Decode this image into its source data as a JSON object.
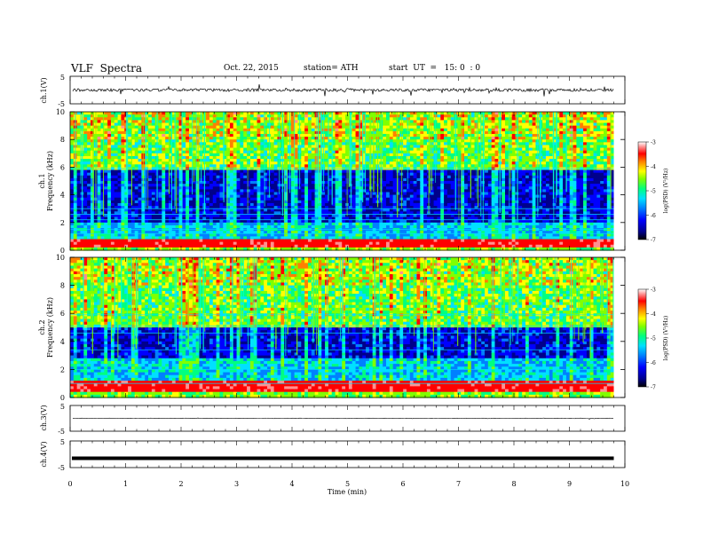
{
  "header": {
    "title": "VLF  Spectra",
    "date": "Oct. 22, 2015",
    "station": "station= ATH",
    "start": "start  UT  =   15: 0  : 0"
  },
  "chart_data": {
    "type": "heatmap",
    "xlabel": "Time  (min)",
    "xlim": [
      0,
      10
    ],
    "x_ticks": [
      "0",
      "1",
      "2",
      "3",
      "4",
      "5",
      "6",
      "7",
      "8",
      "9",
      "10"
    ],
    "data_end_min": 9.8,
    "panels": [
      {
        "name": "ch.1(V)",
        "kind": "waveform",
        "ylim": [
          -5,
          5
        ],
        "y_ticks": [
          "5",
          "-5"
        ],
        "level": 0.0,
        "description_level": "noisy trace near 0 V"
      },
      {
        "name": "ch.1",
        "kind": "spectrogram",
        "ylabel": "Frequency  (kHz)",
        "ylim": [
          0,
          10
        ],
        "y_ticks": [
          "0",
          "2",
          "4",
          "6",
          "8",
          "10"
        ],
        "colorbar": {
          "label": "log(PSD) (V²/Hz)",
          "range": [
            -7,
            -3
          ],
          "ticks": [
            "-3",
            "-4",
            "-5",
            "-6",
            "-7"
          ]
        },
        "features": {
          "strong_band_khz": [
            0.3,
            0.8
          ],
          "quiet_band_khz": [
            2.0,
            5.8
          ],
          "active_band_khz": [
            5.8,
            10.0
          ],
          "constant_lines_khz": [
            1.2,
            1.5,
            2.2,
            2.6,
            3.0,
            5.9
          ]
        }
      },
      {
        "name": "ch.2",
        "kind": "spectrogram",
        "ylabel": "Frequency  (kHz)",
        "ylim": [
          0,
          10
        ],
        "y_ticks": [
          "0",
          "2",
          "4",
          "6",
          "8",
          "10"
        ],
        "colorbar": {
          "label": "log(PSD) (V²/Hz)",
          "range": [
            -7,
            -3
          ],
          "ticks": [
            "-3",
            "-4",
            "-5",
            "-6",
            "-7"
          ]
        },
        "features": {
          "strong_band_khz": [
            0.5,
            1.2
          ],
          "quiet_band_khz": [
            2.8,
            5.0
          ],
          "active_band_khz": [
            5.2,
            10.0
          ],
          "constant_lines_khz": [
            1.0,
            2.0,
            3.4,
            4.6,
            5.1,
            5.9
          ]
        }
      },
      {
        "name": "ch.3(V)",
        "kind": "waveform",
        "ylim": [
          -5,
          5
        ],
        "y_ticks": [
          "5",
          "-5"
        ],
        "level": 0.0
      },
      {
        "name": "ch.4(V)",
        "kind": "waveform",
        "ylim": [
          -5,
          5
        ],
        "y_ticks": [
          "5",
          "-5"
        ],
        "level": -1.5
      }
    ],
    "colors": {
      "scale": [
        "#000000",
        "#00008b",
        "#0000ff",
        "#0080ff",
        "#00e0ff",
        "#00ff80",
        "#80ff00",
        "#ffff00",
        "#ff8000",
        "#ff0000",
        "#ff9090",
        "#ffffff"
      ]
    }
  }
}
